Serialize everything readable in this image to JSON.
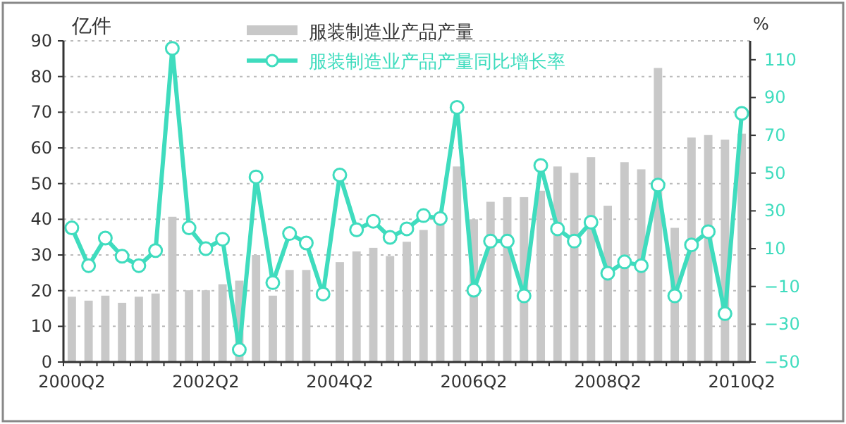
{
  "chart_data": {
    "type": "bar",
    "ylabel": "亿件",
    "y2label": "%",
    "categories": [
      "2000Q2",
      null,
      null,
      null,
      null,
      null,
      null,
      null,
      "2002Q2",
      null,
      null,
      null,
      null,
      null,
      null,
      null,
      "2004Q2",
      null,
      null,
      null,
      null,
      null,
      null,
      null,
      "2006Q2",
      null,
      null,
      null,
      null,
      null,
      null,
      null,
      "2008Q2",
      null,
      null,
      null,
      null,
      null,
      null,
      null,
      "2010Q2"
    ],
    "series": [
      {
        "name": "服装制造业产品产量",
        "color": "#c8c8c8",
        "values": [
          18.3,
          17.2,
          18.6,
          16.6,
          18.3,
          19.2,
          40.7,
          20.1,
          20.1,
          21.8,
          22.8,
          30,
          18.6,
          25.8,
          25.8,
          null,
          28,
          31,
          32,
          29.7,
          33.7,
          37,
          39.9,
          54.8,
          40,
          44.9,
          46.2,
          46.2,
          48,
          54.8,
          53,
          57.4,
          43.8,
          56,
          54,
          82.4,
          37.6,
          62.9,
          63.6,
          62.3,
          64
        ]
      },
      {
        "name": "服装制造业产品产量同比增长率",
        "type": "line",
        "axis": "y2",
        "color": "#3fdcbe",
        "marker": "circle",
        "values": [
          21,
          1,
          15.6,
          6,
          1,
          9,
          116,
          21,
          10,
          15,
          -43.5,
          48,
          -8,
          18,
          13,
          -14,
          49,
          20,
          24.5,
          16,
          20.5,
          27.5,
          26,
          84.8,
          -12,
          14,
          14,
          -15,
          54,
          20.5,
          14,
          24,
          -3,
          3,
          1,
          43.7,
          -15,
          12,
          19,
          -24.4,
          81.6
        ]
      }
    ],
    "ylim": [
      0,
      90
    ],
    "yticks": [
      0,
      10,
      20,
      30,
      40,
      50,
      60,
      70,
      80,
      90
    ],
    "y2lim": [
      -50,
      120
    ],
    "y2ticks": [
      -50,
      -30,
      -10,
      10,
      30,
      50,
      70,
      90,
      110
    ],
    "grid": "y",
    "legend": "top"
  }
}
